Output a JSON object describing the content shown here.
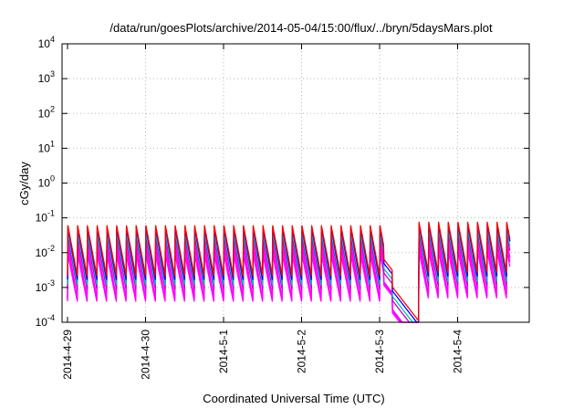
{
  "chart_data": {
    "type": "line",
    "title": "/data/run/goesPlots/archive/2014-05-04/15:00/flux/../bryn/5daysMars.plot",
    "xlabel": "Coordinated Universal Time (UTC)",
    "ylabel": "cGy/day",
    "yscale": "log",
    "ylim": [
      0.0001,
      10000
    ],
    "x_range_days": [
      0,
      5.67
    ],
    "grid": true,
    "y_ticks": [
      {
        "base": "10",
        "exp": "-4",
        "value": 0.0001
      },
      {
        "base": "10",
        "exp": "-3",
        "value": 0.001
      },
      {
        "base": "10",
        "exp": "-2",
        "value": 0.01
      },
      {
        "base": "10",
        "exp": "-1",
        "value": 0.1
      },
      {
        "base": "10",
        "exp": "0",
        "value": 1
      },
      {
        "base": "10",
        "exp": "1",
        "value": 10
      },
      {
        "base": "10",
        "exp": "2",
        "value": 100
      },
      {
        "base": "10",
        "exp": "3",
        "value": 1000
      },
      {
        "base": "10",
        "exp": "4",
        "value": 10000
      }
    ],
    "x_ticks": [
      {
        "label": "2014-4-29",
        "day": 0
      },
      {
        "label": "2014-4-30",
        "day": 1
      },
      {
        "label": "2014-5-1",
        "day": 2
      },
      {
        "label": "2014-5-2",
        "day": 3
      },
      {
        "label": "2014-5-3",
        "day": 4
      },
      {
        "label": "2014-5-4",
        "day": 5
      }
    ],
    "pattern": {
      "period_days": 0.125,
      "gap_start_day": 4.05,
      "gap_end_day": 4.5,
      "post_gap_scale": 1.25,
      "peak_fraction": 0.03
    },
    "series": [
      {
        "color": "#ff0000",
        "peak": 0.062,
        "trough": 0.0022
      },
      {
        "color": "#0000ff",
        "peak": 0.055,
        "trough": 0.0017
      },
      {
        "color": "#00bfbf",
        "peak": 0.04,
        "trough": 0.0012
      },
      {
        "color": "#c000c0",
        "peak": 0.03,
        "trough": 0.0009
      },
      {
        "color": "#ff00ff",
        "peak": 0.02,
        "trough": 0.0005
      },
      {
        "color": "#ff00ff",
        "peak": 0.014,
        "trough": 0.00045
      },
      {
        "color": "#ff00ff",
        "peak": 0.009,
        "trough": 0.0004
      }
    ]
  }
}
